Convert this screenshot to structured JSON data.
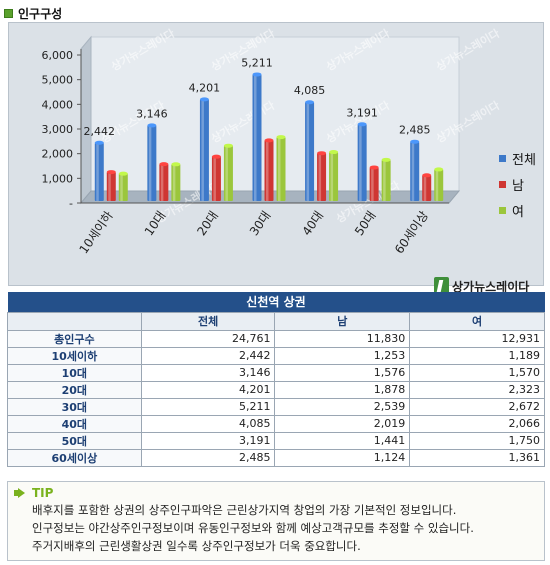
{
  "section_title": "인구구성",
  "chart_data": {
    "type": "bar",
    "categories": [
      "10세이하",
      "10대",
      "20대",
      "30대",
      "40대",
      "50대",
      "60세이상"
    ],
    "series": [
      {
        "name": "전체",
        "values": [
          2442,
          3146,
          4201,
          5211,
          4085,
          3191,
          2485
        ],
        "color": "#3d79c9"
      },
      {
        "name": "남",
        "values": [
          1253,
          1576,
          1878,
          2539,
          2019,
          1441,
          1124
        ],
        "color": "#cf3633"
      },
      {
        "name": "여",
        "values": [
          1189,
          1570,
          2323,
          2672,
          2066,
          1750,
          1361
        ],
        "color": "#9bc63c"
      }
    ],
    "data_labels_series": "전체",
    "yticks": [
      "6,000",
      "5,000",
      "4,000",
      "3,000",
      "2,000",
      "1,000",
      "-"
    ],
    "ylim": [
      0,
      6000
    ],
    "grid": false,
    "legend_position": "right"
  },
  "data_labels": [
    "2,442",
    "3,146",
    "4,201",
    "5,211",
    "4,085",
    "3,191",
    "2,485"
  ],
  "watermark": "상가뉴스레이다",
  "logo_text": "상가뉴스레이다",
  "table": {
    "caption": "신천역 상권",
    "headers": [
      "",
      "전체",
      "남",
      "여"
    ],
    "rows": [
      {
        "label": "총인구수",
        "total": "24,761",
        "male": "11,830",
        "female": "12,931"
      },
      {
        "label": "10세이하",
        "total": "2,442",
        "male": "1,253",
        "female": "1,189"
      },
      {
        "label": "10대",
        "total": "3,146",
        "male": "1,576",
        "female": "1,570"
      },
      {
        "label": "20대",
        "total": "4,201",
        "male": "1,878",
        "female": "2,323"
      },
      {
        "label": "30대",
        "total": "5,211",
        "male": "2,539",
        "female": "2,672"
      },
      {
        "label": "40대",
        "total": "4,085",
        "male": "2,019",
        "female": "2,066"
      },
      {
        "label": "50대",
        "total": "3,191",
        "male": "1,441",
        "female": "1,750"
      },
      {
        "label": "60세이상",
        "total": "2,485",
        "male": "1,124",
        "female": "1,361"
      }
    ]
  },
  "tip": {
    "label": "TIP",
    "lines": [
      "배후지를 포함한 상권의 상주인구파악은 근린상가지역 창업의 가장 기본적인 정보입니다.",
      "인구정보는 야간상주인구정보이며 유동인구정보와 함께 예상고객규모를 추정할 수 있습니다.",
      "주거지배후의 근린생활상권 일수록 상주인구정보가 더욱 중요합니다."
    ]
  }
}
